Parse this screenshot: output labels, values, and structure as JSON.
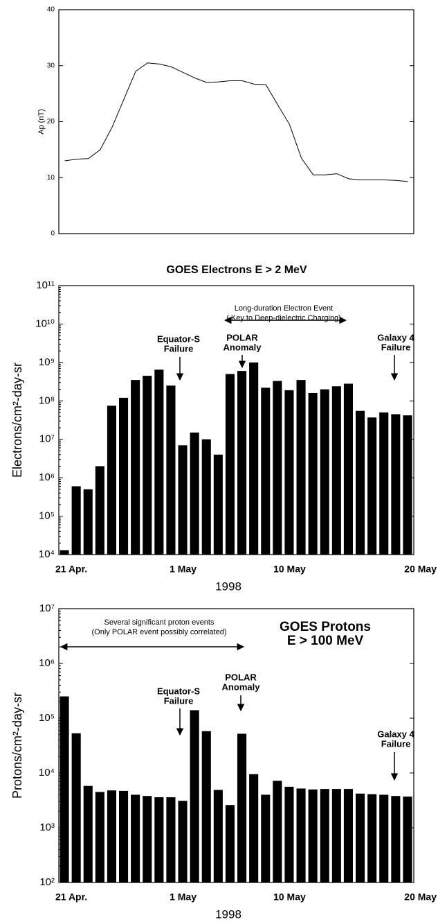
{
  "chart_data": [
    {
      "type": "line",
      "ylabel": "Ap (nT)",
      "color": "#000000",
      "values": [
        13,
        13.3,
        13.4,
        15,
        19,
        24,
        29,
        30.5,
        30.3,
        29.8,
        28.8,
        27.8,
        27,
        27.1,
        27.3,
        27.3,
        26.7,
        26.6,
        23,
        19.5,
        13.5,
        10.5,
        10.5,
        10.7,
        9.8,
        9.6,
        9.6,
        9.6,
        9.5,
        9.3
      ],
      "ylim": [
        0,
        40
      ],
      "yticks": [
        0,
        10,
        20,
        30,
        40
      ]
    },
    {
      "type": "bar",
      "title": "GOES Electrons E > 2 MeV",
      "ylabel": "Electrons/cm²-day-sr",
      "xlabel": "1998",
      "color": "#000000",
      "log_scale": true,
      "categories": [
        "21 Apr.",
        null,
        null,
        null,
        null,
        null,
        null,
        null,
        null,
        null,
        "1 May",
        null,
        null,
        null,
        null,
        null,
        null,
        null,
        null,
        "10 May",
        null,
        null,
        null,
        null,
        null,
        null,
        null,
        null,
        null,
        "20 May"
      ],
      "values": [
        13000,
        600000,
        500000,
        2000000,
        75000000,
        120000000,
        350000000,
        450000000,
        650000000,
        250000000,
        7000000,
        15000000,
        10000000,
        4000000,
        500000000,
        600000000,
        1000000000,
        220000000,
        330000000,
        190000000,
        350000000,
        160000000,
        200000000,
        240000000,
        280000000,
        55000000,
        37000000,
        50000000,
        45000000,
        42000000
      ],
      "ylim": [
        10000,
        100000000000
      ],
      "yticks": [
        {
          "value": 10000,
          "label": "10⁴"
        },
        {
          "value": 100000,
          "label": "10⁵"
        },
        {
          "value": 1000000,
          "label": "10⁶"
        },
        {
          "value": 10000000,
          "label": "10⁷"
        },
        {
          "value": 100000000,
          "label": "10⁸"
        },
        {
          "value": 1000000000,
          "label": "10⁹"
        },
        {
          "value": 10000000000,
          "label": "10¹⁰"
        },
        {
          "value": 100000000000,
          "label": "10¹¹"
        }
      ],
      "annotations": [
        [
          "Long-duration Electron Event",
          "( Key to Deep-dielectric Charging)"
        ],
        [
          "Equator-S",
          "Failure"
        ],
        [
          "POLAR",
          "Anomaly"
        ],
        [
          "Galaxy 4",
          "Failure"
        ]
      ]
    },
    {
      "type": "bar",
      "title": [
        "GOES Protons",
        "E > 100 MeV"
      ],
      "ylabel": "Protons/cm²-day-sr",
      "xlabel": "1998",
      "color": "#000000",
      "log_scale": true,
      "categories": [
        "21 Apr.",
        null,
        null,
        null,
        null,
        null,
        null,
        null,
        null,
        null,
        "1 May",
        null,
        null,
        null,
        null,
        null,
        null,
        null,
        null,
        "10 May",
        null,
        null,
        null,
        null,
        null,
        null,
        null,
        null,
        null,
        "20 May"
      ],
      "values": [
        250000,
        53000,
        5800,
        4500,
        4800,
        4700,
        4000,
        3800,
        3600,
        3600,
        3100,
        140000,
        58000,
        4900,
        2600,
        52000,
        9500,
        4000,
        7200,
        5600,
        5200,
        5000,
        5100,
        5100,
        5100,
        4200,
        4100,
        4000,
        3800,
        3700
      ],
      "ylim": [
        100,
        10000000
      ],
      "yticks": [
        {
          "value": 100,
          "label": "10²"
        },
        {
          "value": 1000,
          "label": "10³"
        },
        {
          "value": 10000,
          "label": "10⁴"
        },
        {
          "value": 100000,
          "label": "10⁵"
        },
        {
          "value": 1000000,
          "label": "10⁶"
        },
        {
          "value": 10000000,
          "label": "10⁷"
        }
      ],
      "annotations": [
        [
          "Several significant proton events",
          "(Only POLAR event possibly correlated)"
        ],
        [
          "Equator-S",
          "Failure"
        ],
        [
          "POLAR",
          "Anomaly"
        ],
        [
          "Galaxy 4",
          "Failure"
        ]
      ]
    }
  ]
}
